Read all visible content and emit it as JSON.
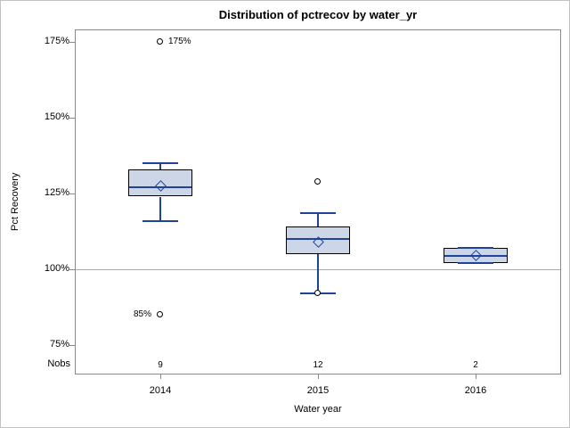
{
  "nobs_row": {
    "label": "Nobs",
    "values": [
      "9",
      "12",
      "2"
    ]
  },
  "colors": {
    "box_fill": "#cdd6e7",
    "box_border": "#000000",
    "whisker_blue": "#1e4397",
    "axis_gray": "#8a8a8a",
    "reference_line_gray": "#a8a8a8",
    "text": "#000000",
    "outer_border": "#c2c2c2"
  },
  "chart_data": {
    "type": "box",
    "title": "Distribution of pctrecov by water_yr",
    "xlabel": "Water year",
    "ylabel": "Pct Recovery",
    "ylim": [
      65,
      180
    ],
    "grid": false,
    "legend": false,
    "reference_line": 100,
    "nobs_label": "Nobs",
    "y_ticks": [
      {
        "value": 175,
        "label": "175%"
      },
      {
        "value": 150,
        "label": "150%"
      },
      {
        "value": 125,
        "label": "125%"
      },
      {
        "value": 100,
        "label": "100%"
      },
      {
        "value": 75,
        "label": "75%"
      }
    ],
    "categories": [
      "2014",
      "2015",
      "2016"
    ],
    "series": [
      {
        "category": "2014",
        "nobs": 9,
        "whisker_low": 116,
        "q1": 124,
        "median": 127,
        "mean": 127.5,
        "q3": 133,
        "whisker_high": 135,
        "outliers": [
          {
            "value": 175,
            "label": "175%",
            "label_side": "right"
          },
          {
            "value": 85,
            "label": "85%",
            "label_side": "left"
          }
        ]
      },
      {
        "category": "2015",
        "nobs": 12,
        "whisker_low": 92,
        "q1": 105,
        "median": 110,
        "mean": 109,
        "q3": 114,
        "whisker_high": 118.5,
        "outliers": [
          {
            "value": 129
          },
          {
            "value": 92
          }
        ]
      },
      {
        "category": "2016",
        "nobs": 2,
        "whisker_low": 102,
        "q1": 102,
        "median": 104.5,
        "mean": 104.5,
        "q3": 107,
        "whisker_high": 107,
        "outliers": []
      }
    ]
  }
}
